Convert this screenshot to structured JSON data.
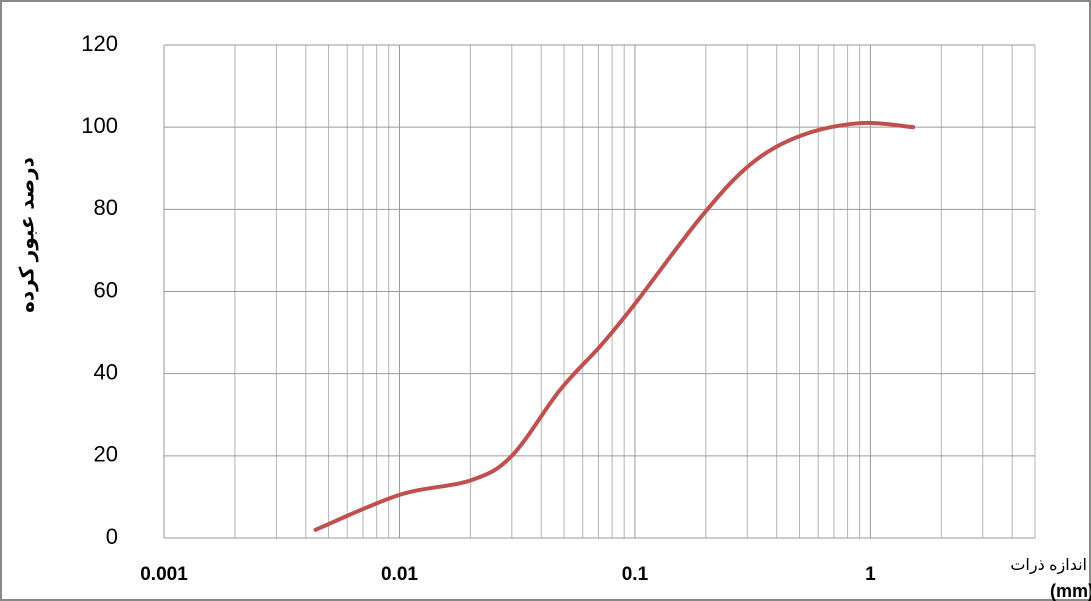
{
  "chart_data": {
    "type": "line",
    "y_axis_label": "درصد عبور کرده",
    "x_axis_label": "اندازه ذرات",
    "x_axis_unit": "(mm)",
    "x_log_scale": true,
    "grid": true,
    "x": [
      0.0044,
      0.01,
      0.02,
      0.03,
      0.048,
      0.072,
      0.1,
      0.19,
      0.31,
      0.51,
      0.91,
      1.52
    ],
    "series": [
      {
        "name": null,
        "color": "#c0504d",
        "values": [
          2,
          10.5,
          14,
          20,
          36,
          47,
          57,
          78,
          91,
          98,
          101,
          100
        ]
      }
    ],
    "xlim": [
      0.001,
      5
    ],
    "xticks": [
      0.001,
      0.01,
      0.1,
      1
    ],
    "x_minor_ticks": [
      0.002,
      0.003,
      0.004,
      0.005,
      0.006,
      0.007,
      0.008,
      0.009,
      0.02,
      0.03,
      0.04,
      0.05,
      0.06,
      0.07,
      0.08,
      0.09,
      0.2,
      0.3,
      0.4,
      0.5,
      0.6,
      0.7,
      0.8,
      0.9,
      2,
      3,
      4,
      5
    ],
    "ylim": [
      0,
      120
    ],
    "yticks": [
      0,
      20,
      40,
      60,
      80,
      100,
      120
    ]
  }
}
